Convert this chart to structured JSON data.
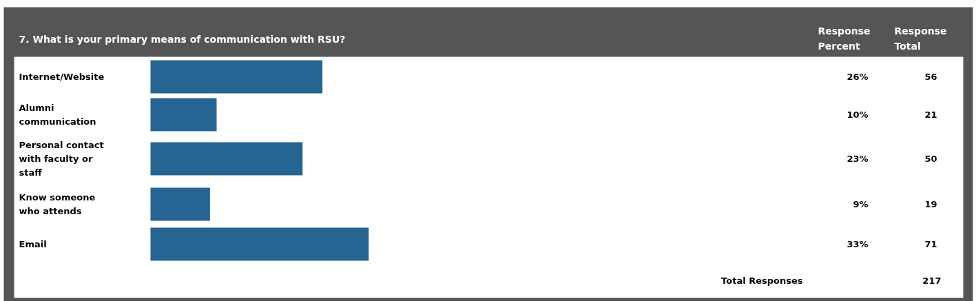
{
  "chart_data": {
    "type": "bar",
    "orientation": "horizontal",
    "title": "7. What is your primary means of communication with RSU?",
    "categories": [
      "Internet/Website",
      "Alumni communication",
      "Personal contact with faculty or staff",
      "Know someone who attends",
      "Email"
    ],
    "values": [
      26,
      10,
      23,
      9,
      33
    ],
    "value_labels": [
      "26%",
      "10%",
      "23%",
      "9%",
      "33%"
    ],
    "color": "#266591",
    "tick_labels": false,
    "grid": false,
    "annotations": [
      "Response Percent",
      "Response Total",
      "Total Responses",
      "217",
      "56",
      "21",
      "50",
      "19",
      "71"
    ]
  }
}
